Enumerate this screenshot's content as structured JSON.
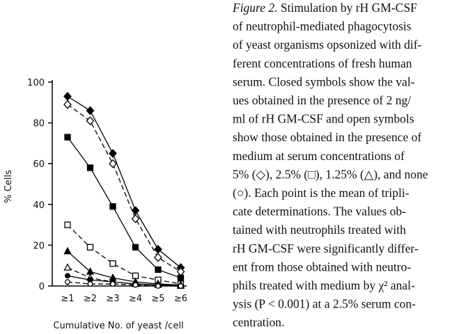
{
  "chart_data": {
    "type": "line",
    "ylabel": "% Cells",
    "xlabel": "Cumulative No. of yeast /cell",
    "categories": [
      "≥1",
      "≥2",
      "≥3",
      "≥4",
      "≥5",
      "≥6"
    ],
    "ylim": [
      0,
      100
    ],
    "yticks": [
      0,
      20,
      40,
      60,
      80,
      100
    ],
    "series": [
      {
        "color": "#000000",
        "marker": "diamond",
        "filled": true,
        "dashed": false,
        "values": [
          93,
          86,
          65,
          37,
          18,
          9
        ]
      },
      {
        "color": "#000000",
        "marker": "diamond",
        "filled": false,
        "dashed": true,
        "values": [
          89,
          81,
          60,
          33,
          14,
          7
        ]
      },
      {
        "color": "#000000",
        "marker": "square",
        "filled": true,
        "dashed": false,
        "values": [
          73,
          58,
          39,
          19,
          8,
          4
        ]
      },
      {
        "color": "#000000",
        "marker": "square",
        "filled": false,
        "dashed": true,
        "values": [
          30,
          19,
          11,
          5,
          3,
          1
        ]
      },
      {
        "color": "#000000",
        "marker": "triangle",
        "filled": true,
        "dashed": false,
        "values": [
          17,
          7,
          4,
          2,
          1,
          0.5
        ]
      },
      {
        "color": "#000000",
        "marker": "triangle",
        "filled": false,
        "dashed": true,
        "values": [
          9,
          4,
          2,
          1,
          0.5,
          0
        ]
      },
      {
        "color": "#000000",
        "marker": "circle",
        "filled": true,
        "dashed": false,
        "values": [
          5,
          3,
          2,
          1,
          0.5,
          0
        ]
      },
      {
        "color": "#000000",
        "marker": "circle",
        "filled": false,
        "dashed": true,
        "values": [
          2,
          1,
          1,
          0.5,
          0,
          0
        ]
      }
    ]
  },
  "caption": {
    "label": "Figure 2.",
    "lines": [
      " Stimulation by rH GM-CSF",
      "of neutrophil-mediated phagocytosis",
      "of yeast organisms opsonized with dif-",
      "ferent concentrations of fresh human",
      "serum. Closed symbols show the val-",
      "ues obtained in the presence of 2 ng/",
      "ml of rH GM-CSF and open symbols",
      "show those obtained in the presence of",
      "medium at serum concentrations of",
      "5% (◇), 2.5% (□), 1.25% (△), and none",
      "(○). Each point is the mean of tripli-",
      "cate determinations. The values ob-",
      "tained with neutrophils treated with",
      "rH GM-CSF were significantly differ-",
      "ent from those obtained with neutro-",
      "phils treated with medium by χ² anal-",
      "ysis (P < 0.001) at a 2.5% serum con-",
      "centration."
    ]
  }
}
